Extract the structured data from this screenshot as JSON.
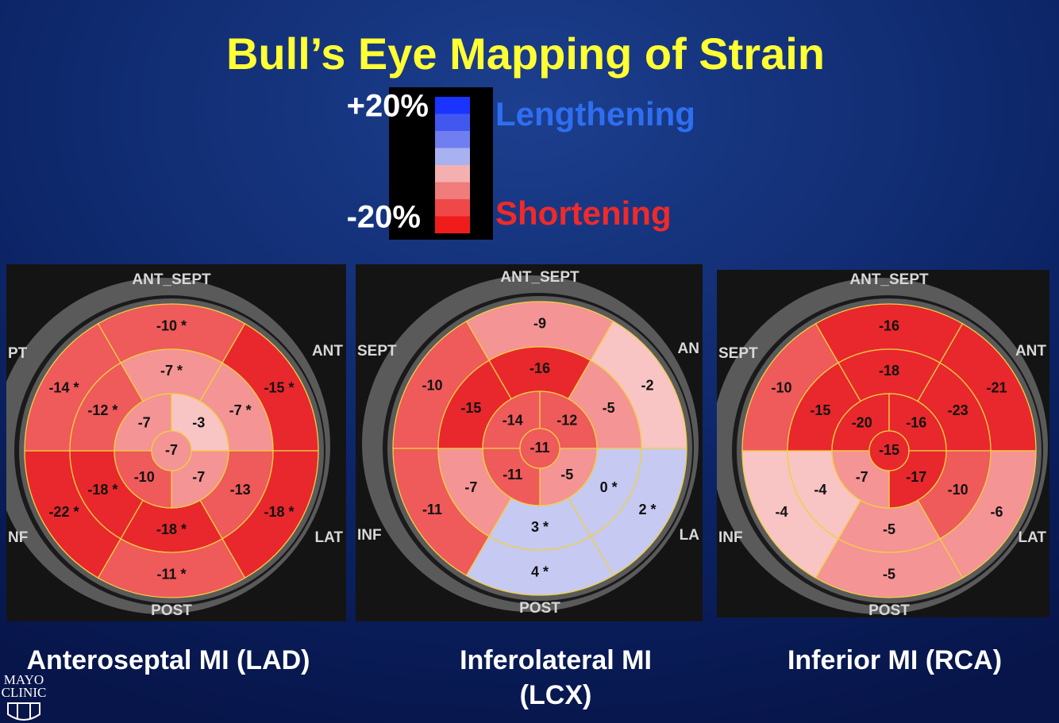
{
  "title": "Bull’s Eye Mapping of Strain",
  "legend": {
    "top": "+20%",
    "bottom": "-20%",
    "lengthening": "Lengthening",
    "shortening": "Shortening"
  },
  "panels": [
    {
      "caption": [
        "Anteroseptal MI (LAD)"
      ],
      "labels": {
        "top": "ANT_SEPT",
        "upper_right": "ANT",
        "upper_left": "PT",
        "lower_left": "NF",
        "lower_right": "LAT",
        "bottom": "POST"
      },
      "basal": [
        "-10 *",
        "-15 *",
        "-18 *",
        "-11 *",
        "-22 *",
        "-14 *"
      ],
      "mid": [
        "-7 *",
        "-7 *",
        "-13",
        "-18 *",
        "-18 *",
        "-12 *"
      ],
      "apical": [
        "-7",
        "-3",
        "-7",
        "-10"
      ],
      "apex": "-7"
    },
    {
      "caption": [
        "Inferolateral MI",
        "(LCX)"
      ],
      "labels": {
        "top": "ANT_SEPT",
        "upper_right": "AN",
        "upper_left": "SEPT",
        "lower_left": "INF",
        "lower_right": "LA",
        "bottom": "POST"
      },
      "basal": [
        "-9",
        "-2",
        "2 *",
        "4 *",
        "-11",
        "-10"
      ],
      "mid": [
        "-16",
        "-5",
        "0 *",
        "3 *",
        "-7",
        "-15"
      ],
      "apical": [
        "-14",
        "-12",
        "-5",
        "-11"
      ],
      "apex": "-11"
    },
    {
      "caption": [
        "Inferior MI (RCA)"
      ],
      "labels": {
        "top": "ANT_SEPT",
        "upper_right": "ANT",
        "upper_left": "SEPT",
        "lower_left": "INF",
        "lower_right": "LAT",
        "bottom": "POST"
      },
      "basal": [
        "-16",
        "-21",
        "-6",
        "-5",
        "-4",
        "-10"
      ],
      "mid": [
        "-18",
        "-23",
        "-10",
        "-5",
        "-4",
        "-15"
      ],
      "apical": [
        "-20",
        "-16",
        "-17",
        "-7"
      ],
      "apex": "-15"
    }
  ],
  "logo": [
    "MAYO",
    "CLINIC"
  ]
}
